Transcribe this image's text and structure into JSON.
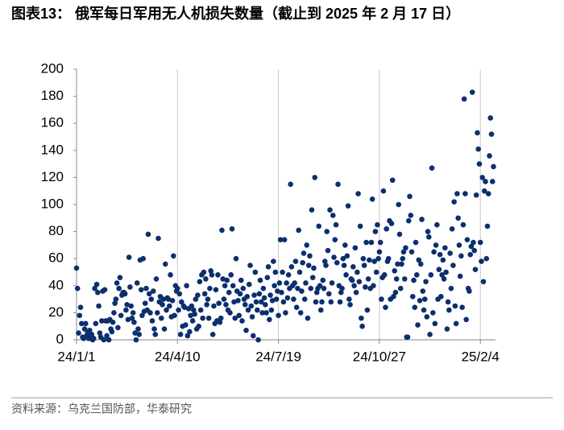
{
  "chart_data": {
    "type": "scatter",
    "title": "图表13： 俄军每日军用无人机损失数量（截止到 2025 年 2 月 17 日）",
    "source": "资料来源：乌克兰国防部，华泰研究",
    "color": "#0c2f6e",
    "grid": "x",
    "xlim": [
      "24/1/1",
      "25/2/19"
    ],
    "xticks": [
      "24/1/1",
      "24/4/10",
      "24/7/19",
      "24/10/27",
      "25/2/4"
    ],
    "ylim": [
      0,
      200
    ],
    "yticks": [
      0,
      20,
      40,
      60,
      80,
      100,
      120,
      140,
      160,
      180,
      200
    ],
    "x": [
      "24/1/1",
      "24/1/2",
      "24/1/3",
      "24/1/4",
      "24/1/5",
      "24/1/6",
      "24/1/7",
      "24/1/8",
      "24/1/9",
      "24/1/10",
      "24/1/11",
      "24/1/12",
      "24/1/13",
      "24/1/14",
      "24/1/15",
      "24/1/16",
      "24/1/17",
      "24/1/18",
      "24/1/19",
      "24/1/20",
      "24/1/21",
      "24/1/22",
      "24/1/23",
      "24/1/24",
      "24/1/25",
      "24/1/26",
      "24/1/27",
      "24/1/28",
      "24/1/29",
      "24/1/30",
      "24/1/31",
      "24/2/1",
      "24/2/2",
      "24/2/3",
      "24/2/4",
      "24/2/5",
      "24/2/6",
      "24/2/7",
      "24/2/8",
      "24/2/9",
      "24/2/10",
      "24/2/11",
      "24/2/12",
      "24/2/13",
      "24/2/14",
      "24/2/15",
      "24/2/16",
      "24/2/17",
      "24/2/18",
      "24/2/19",
      "24/2/20",
      "24/2/21",
      "24/2/22",
      "24/2/23",
      "24/2/24",
      "24/2/25",
      "24/2/26",
      "24/2/27",
      "24/2/28",
      "24/2/29",
      "24/3/1",
      "24/3/2",
      "24/3/3",
      "24/3/4",
      "24/3/5",
      "24/3/6",
      "24/3/7",
      "24/3/8",
      "24/3/9",
      "24/3/10",
      "24/3/11",
      "24/3/12",
      "24/3/13",
      "24/3/14",
      "24/3/15",
      "24/3/16",
      "24/3/17",
      "24/3/18",
      "24/3/19",
      "24/3/20",
      "24/3/21",
      "24/3/22",
      "24/3/23",
      "24/3/24",
      "24/3/25",
      "24/3/26",
      "24/3/27",
      "24/3/28",
      "24/3/29",
      "24/3/30",
      "24/3/31",
      "24/4/1",
      "24/4/2",
      "24/4/3",
      "24/4/4",
      "24/4/5",
      "24/4/6",
      "24/4/7",
      "24/4/8",
      "24/4/9",
      "24/4/10",
      "24/4/11",
      "24/4/12",
      "24/4/13",
      "24/4/14",
      "24/4/15",
      "24/4/16",
      "24/4/17",
      "24/4/18",
      "24/4/19",
      "24/4/20",
      "24/4/21",
      "24/4/22",
      "24/4/23",
      "24/4/24",
      "24/4/25",
      "24/4/26",
      "24/4/27",
      "24/4/28",
      "24/4/29",
      "24/4/30",
      "24/5/1",
      "24/5/2",
      "24/5/3",
      "24/5/4",
      "24/5/5",
      "24/5/6",
      "24/5/7",
      "24/5/8",
      "24/5/9",
      "24/5/10",
      "24/5/11",
      "24/5/12",
      "24/5/13",
      "24/5/14",
      "24/5/15",
      "24/5/16",
      "24/5/17",
      "24/5/18",
      "24/5/19",
      "24/5/20",
      "24/5/21",
      "24/5/22",
      "24/5/23",
      "24/5/24",
      "24/5/25",
      "24/5/26",
      "24/5/27",
      "24/5/28",
      "24/5/29",
      "24/5/30",
      "24/5/31",
      "24/6/1",
      "24/6/2",
      "24/6/3",
      "24/6/4",
      "24/6/5",
      "24/6/6",
      "24/6/7",
      "24/6/8",
      "24/6/9",
      "24/6/10",
      "24/6/11",
      "24/6/12",
      "24/6/13",
      "24/6/14",
      "24/6/15",
      "24/6/16",
      "24/6/17",
      "24/6/18",
      "24/6/19",
      "24/6/20",
      "24/6/21",
      "24/6/22",
      "24/6/23",
      "24/6/24",
      "24/6/25",
      "24/6/26",
      "24/6/27",
      "24/6/28",
      "24/6/29",
      "24/6/30",
      "24/7/1",
      "24/7/2",
      "24/7/3",
      "24/7/4",
      "24/7/5",
      "24/7/6",
      "24/7/7",
      "24/7/8",
      "24/7/9",
      "24/7/10",
      "24/7/11",
      "24/7/12",
      "24/7/13",
      "24/7/14",
      "24/7/15",
      "24/7/16",
      "24/7/17",
      "24/7/18",
      "24/7/19",
      "24/7/20",
      "24/7/21",
      "24/7/22",
      "24/7/23",
      "24/7/24",
      "24/7/25",
      "24/7/26",
      "24/7/27",
      "24/7/28",
      "24/7/29",
      "24/7/30",
      "24/7/31",
      "24/8/1",
      "24/8/2",
      "24/8/3",
      "24/8/4",
      "24/8/5",
      "24/8/6",
      "24/8/7",
      "24/8/8",
      "24/8/9",
      "24/8/10",
      "24/8/11",
      "24/8/12",
      "24/8/13",
      "24/8/14",
      "24/8/15",
      "24/8/16",
      "24/8/17",
      "24/8/18",
      "24/8/19",
      "24/8/20",
      "24/8/21",
      "24/8/22",
      "24/8/23",
      "24/8/24",
      "24/8/25",
      "24/8/26",
      "24/8/27",
      "24/8/28",
      "24/8/29",
      "24/8/30",
      "24/8/31",
      "24/9/1",
      "24/9/2",
      "24/9/3",
      "24/9/4",
      "24/9/5",
      "24/9/6",
      "24/9/7",
      "24/9/8",
      "24/9/9",
      "24/9/10",
      "24/9/11",
      "24/9/12",
      "24/9/13",
      "24/9/14",
      "24/9/15",
      "24/9/16",
      "24/9/17",
      "24/9/18",
      "24/9/19",
      "24/9/20",
      "24/9/21",
      "24/9/22",
      "24/9/23",
      "24/9/24",
      "24/9/25",
      "24/9/26",
      "24/9/27",
      "24/9/28",
      "24/9/29",
      "24/9/30",
      "24/10/1",
      "24/10/2",
      "24/10/3",
      "24/10/4",
      "24/10/5",
      "24/10/6",
      "24/10/7",
      "24/10/8",
      "24/10/9",
      "24/10/10",
      "24/10/11",
      "24/10/12",
      "24/10/13",
      "24/10/14",
      "24/10/15",
      "24/10/16",
      "24/10/17",
      "24/10/18",
      "24/10/19",
      "24/10/20",
      "24/10/21",
      "24/10/22",
      "24/10/23",
      "24/10/24",
      "24/10/25",
      "24/10/26",
      "24/10/27",
      "24/10/28",
      "24/10/29",
      "24/10/30",
      "24/10/31",
      "24/11/1",
      "24/11/2",
      "24/11/3",
      "24/11/4",
      "24/11/5",
      "24/11/6",
      "24/11/7",
      "24/11/8",
      "24/11/9",
      "24/11/10",
      "24/11/11",
      "24/11/12",
      "24/11/13",
      "24/11/14",
      "24/11/15",
      "24/11/16",
      "24/11/17",
      "24/11/18",
      "24/11/19",
      "24/11/20",
      "24/11/21",
      "24/11/22",
      "24/11/23",
      "24/11/24",
      "24/11/25",
      "24/11/26",
      "24/11/27",
      "24/11/28",
      "24/11/29",
      "24/11/30",
      "24/12/1",
      "24/12/2",
      "24/12/3",
      "24/12/4",
      "24/12/5",
      "24/12/6",
      "24/12/7",
      "24/12/8",
      "24/12/9",
      "24/12/10",
      "24/12/11",
      "24/12/12",
      "24/12/13",
      "24/12/14",
      "24/12/15",
      "24/12/16",
      "24/12/17",
      "24/12/18",
      "24/12/19",
      "24/12/20",
      "24/12/21",
      "24/12/22",
      "24/12/23",
      "24/12/24",
      "24/12/25",
      "24/12/26",
      "24/12/27",
      "24/12/28",
      "24/12/29",
      "24/12/30",
      "24/12/31",
      "25/1/1",
      "25/1/2",
      "25/1/3",
      "25/1/4",
      "25/1/5",
      "25/1/6",
      "25/1/7",
      "25/1/8",
      "25/1/9",
      "25/1/10",
      "25/1/11",
      "25/1/12",
      "25/1/13",
      "25/1/14",
      "25/1/15",
      "25/1/16",
      "25/1/17",
      "25/1/18",
      "25/1/19",
      "25/1/20",
      "25/1/21",
      "25/1/22",
      "25/1/23",
      "25/1/24",
      "25/1/25",
      "25/1/26",
      "25/1/27",
      "25/1/28",
      "25/1/29",
      "25/1/30",
      "25/1/31",
      "25/2/1",
      "25/2/2",
      "25/2/3",
      "25/2/4",
      "25/2/5",
      "25/2/6",
      "25/2/7",
      "25/2/8",
      "25/2/9",
      "25/2/10",
      "25/2/11",
      "25/2/12",
      "25/2/13",
      "25/2/14",
      "25/2/15",
      "25/2/16",
      "25/2/17"
    ],
    "values": [
      53,
      38,
      5,
      18,
      24,
      12,
      2,
      1,
      8,
      12,
      3,
      5,
      1,
      7,
      2,
      4,
      0,
      1,
      38,
      12,
      41,
      35,
      25,
      5,
      2,
      14,
      36,
      0,
      37,
      14,
      3,
      14,
      0,
      15,
      8,
      6,
      13,
      20,
      27,
      30,
      42,
      9,
      38,
      46,
      18,
      33,
      35,
      35,
      34,
      22,
      26,
      15,
      61,
      39,
      25,
      16,
      20,
      13,
      5,
      0,
      42,
      8,
      4,
      59,
      37,
      18,
      60,
      21,
      27,
      38,
      22,
      78,
      34,
      20,
      30,
      14,
      36,
      8,
      4,
      45,
      20,
      75,
      28,
      32,
      16,
      26,
      30,
      8,
      56,
      22,
      31,
      30,
      25,
      48,
      17,
      29,
      62,
      18,
      40,
      36,
      38,
      22,
      34,
      4,
      28,
      10,
      25,
      24,
      11,
      40,
      3,
      23,
      6,
      18,
      25,
      14,
      22,
      19,
      30,
      8,
      33,
      10,
      43,
      22,
      48,
      16,
      50,
      34,
      45,
      26,
      30,
      16,
      38,
      51,
      48,
      4,
      25,
      12,
      37,
      14,
      48,
      27,
      13,
      16,
      81,
      45,
      30,
      40,
      26,
      44,
      22,
      35,
      20,
      48,
      82,
      40,
      28,
      16,
      60,
      36,
      29,
      18,
      34,
      44,
      14,
      38,
      30,
      26,
      7,
      32,
      22,
      41,
      55,
      25,
      17,
      3,
      33,
      50,
      28,
      22,
      0,
      34,
      44,
      28,
      20,
      38,
      31,
      26,
      20,
      46,
      54,
      15,
      33,
      22,
      29,
      58,
      40,
      50,
      30,
      36,
      18,
      42,
      74,
      35,
      50,
      28,
      74,
      20,
      42,
      31,
      48,
      38,
      115,
      54,
      40,
      30,
      42,
      58,
      24,
      38,
      81,
      50,
      20,
      36,
      57,
      64,
      30,
      42,
      70,
      16,
      55,
      62,
      38,
      96,
      46,
      53,
      120,
      28,
      35,
      38,
      84,
      40,
      22,
      28,
      44,
      38,
      58,
      55,
      80,
      66,
      34,
      96,
      28,
      42,
      92,
      61,
      74,
      85,
      57,
      115,
      40,
      28,
      35,
      38,
      60,
      55,
      70,
      48,
      62,
      99,
      30,
      26,
      45,
      44,
      54,
      40,
      68,
      35,
      50,
      108,
      43,
      84,
      16,
      10,
      60,
      55,
      39,
      72,
      22,
      45,
      59,
      38,
      72,
      104,
      40,
      58,
      80,
      50,
      85,
      60,
      65,
      72,
      30,
      46,
      110,
      48,
      24,
      82,
      58,
      60,
      88,
      30,
      86,
      118,
      32,
      51,
      35,
      45,
      56,
      100,
      78,
      38,
      56,
      60,
      65,
      45,
      68,
      2,
      2,
      88,
      106,
      92,
      65,
      32,
      44,
      24,
      72,
      48,
      11,
      59,
      29,
      56,
      89,
      36,
      22,
      30,
      43,
      17,
      80,
      76,
      4,
      48,
      127,
      20,
      65,
      12,
      70,
      85,
      30,
      52,
      63,
      32,
      48,
      59,
      45,
      68,
      50,
      8,
      28,
      22,
      64,
      38,
      82,
      55,
      102,
      25,
      12,
      108,
      90,
      70,
      47,
      62,
      24,
      85,
      178,
      108,
      15,
      74,
      38,
      36,
      63,
      69,
      183,
      72,
      66,
      52,
      107,
      153,
      141,
      130,
      72,
      58,
      120,
      43,
      110,
      117,
      60,
      84,
      108,
      136,
      164,
      152,
      117,
      128
    ]
  }
}
